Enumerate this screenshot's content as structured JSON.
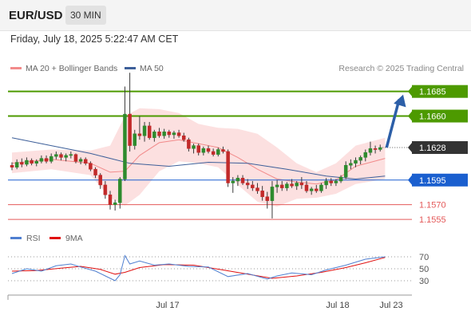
{
  "header": {
    "symbol": "EUR/USD",
    "timeframe": "30 MIN"
  },
  "datetime": "Friday, July 18, 2025 5:22:47 AM CET",
  "legend": {
    "ma20": {
      "label": "MA 20 + Bollinger Bands",
      "color": "#f28b8b"
    },
    "ma50": {
      "label": "MA 50",
      "color": "#3d5f99"
    }
  },
  "credit": "Research © 2025 Trading Central",
  "rsi_legend": {
    "rsi": {
      "label": "RSI",
      "color": "#4f7fd0"
    },
    "ma9": {
      "label": "9MA",
      "color": "#e01010"
    }
  },
  "colors": {
    "resistance": "#4d9a00",
    "pivot": "#1a5fcf",
    "support": "#e45a5a",
    "last": "#333333",
    "arrow": "#2c5fa8"
  },
  "chart_data": [
    {
      "type": "candlestick",
      "ylim": [
        1.1547,
        1.1705
      ],
      "x_ticks": [
        "Jul 17",
        "Jul 18",
        "Jul 23"
      ],
      "levels": [
        {
          "label": "1.1685",
          "value": 1.1685,
          "kind": "resistance"
        },
        {
          "label": "1.1660",
          "value": 1.166,
          "kind": "resistance"
        },
        {
          "label": "1.1628",
          "value": 1.1628,
          "kind": "last"
        },
        {
          "label": "1.1595",
          "value": 1.1595,
          "kind": "pivot"
        },
        {
          "label": "1.1570",
          "value": 1.157,
          "kind": "support"
        },
        {
          "label": "1.1555",
          "value": 1.1555,
          "kind": "support"
        }
      ],
      "forecast_arrow": {
        "from": 1.1628,
        "to": 1.1685
      },
      "ohlc": [
        [
          1.161,
          1.1613,
          1.1605,
          1.1608
        ],
        [
          1.1608,
          1.1616,
          1.1606,
          1.1613
        ],
        [
          1.1613,
          1.1617,
          1.1608,
          1.1611
        ],
        [
          1.1611,
          1.1618,
          1.1609,
          1.1615
        ],
        [
          1.1615,
          1.1617,
          1.161,
          1.1612
        ],
        [
          1.1612,
          1.1616,
          1.1609,
          1.1614
        ],
        [
          1.1614,
          1.162,
          1.1612,
          1.1617
        ],
        [
          1.1617,
          1.162,
          1.1612,
          1.1614
        ],
        [
          1.1614,
          1.1622,
          1.1612,
          1.1619
        ],
        [
          1.1619,
          1.1624,
          1.1616,
          1.1621
        ],
        [
          1.1621,
          1.1623,
          1.1615,
          1.1618
        ],
        [
          1.1618,
          1.1622,
          1.1614,
          1.162
        ],
        [
          1.162,
          1.1624,
          1.1617,
          1.1621
        ],
        [
          1.1621,
          1.1622,
          1.1612,
          1.1614
        ],
        [
          1.1614,
          1.1618,
          1.1611,
          1.1616
        ],
        [
          1.1616,
          1.1618,
          1.161,
          1.1612
        ],
        [
          1.1612,
          1.1614,
          1.1604,
          1.1606
        ],
        [
          1.1606,
          1.1608,
          1.1597,
          1.16
        ],
        [
          1.16,
          1.1602,
          1.1586,
          1.159
        ],
        [
          1.159,
          1.1594,
          1.1576,
          1.158
        ],
        [
          1.158,
          1.1584,
          1.1565,
          1.157
        ],
        [
          1.157,
          1.1575,
          1.1564,
          1.1572
        ],
        [
          1.1572,
          1.1598,
          1.1566,
          1.1596
        ],
        [
          1.1596,
          1.169,
          1.1594,
          1.1662
        ],
        [
          1.1662,
          1.1704,
          1.1624,
          1.163
        ],
        [
          1.163,
          1.1646,
          1.1626,
          1.1642
        ],
        [
          1.1642,
          1.166,
          1.1636,
          1.164
        ],
        [
          1.164,
          1.1654,
          1.1634,
          1.165
        ],
        [
          1.165,
          1.1654,
          1.1636,
          1.1638
        ],
        [
          1.1638,
          1.1646,
          1.1634,
          1.1644
        ],
        [
          1.1644,
          1.1648,
          1.1638,
          1.164
        ],
        [
          1.164,
          1.1647,
          1.1637,
          1.1644
        ],
        [
          1.1644,
          1.1646,
          1.1638,
          1.1641
        ],
        [
          1.1641,
          1.1645,
          1.1637,
          1.1643
        ],
        [
          1.1643,
          1.1646,
          1.1638,
          1.164
        ],
        [
          1.164,
          1.1643,
          1.1634,
          1.1636
        ],
        [
          1.1636,
          1.1638,
          1.1624,
          1.1627
        ],
        [
          1.1627,
          1.1632,
          1.1622,
          1.163
        ],
        [
          1.163,
          1.1632,
          1.162,
          1.1623
        ],
        [
          1.1623,
          1.1629,
          1.162,
          1.1627
        ],
        [
          1.1627,
          1.163,
          1.1622,
          1.1624
        ],
        [
          1.1624,
          1.1627,
          1.1619,
          1.1621
        ],
        [
          1.1621,
          1.1628,
          1.1619,
          1.1626
        ],
        [
          1.1626,
          1.1629,
          1.1622,
          1.1624
        ],
        [
          1.1624,
          1.1626,
          1.1588,
          1.1592
        ],
        [
          1.1592,
          1.1598,
          1.1582,
          1.1594
        ],
        [
          1.1594,
          1.16,
          1.1589,
          1.1597
        ],
        [
          1.1597,
          1.16,
          1.159,
          1.1592
        ],
        [
          1.1592,
          1.1596,
          1.1586,
          1.159
        ],
        [
          1.159,
          1.1594,
          1.1584,
          1.1587
        ],
        [
          1.1587,
          1.1592,
          1.1581,
          1.1584
        ],
        [
          1.1584,
          1.1589,
          1.1574,
          1.1578
        ],
        [
          1.1578,
          1.1583,
          1.1566,
          1.1574
        ],
        [
          1.1574,
          1.1594,
          1.1556,
          1.1588
        ],
        [
          1.1588,
          1.1595,
          1.1582,
          1.159
        ],
        [
          1.159,
          1.1594,
          1.1584,
          1.1587
        ],
        [
          1.1587,
          1.1593,
          1.1584,
          1.1591
        ],
        [
          1.1591,
          1.1596,
          1.1587,
          1.1589
        ],
        [
          1.1589,
          1.1594,
          1.1585,
          1.1592
        ],
        [
          1.1592,
          1.1598,
          1.1586,
          1.159
        ],
        [
          1.159,
          1.1594,
          1.1582,
          1.1584
        ],
        [
          1.1584,
          1.1588,
          1.158,
          1.1586
        ],
        [
          1.1586,
          1.159,
          1.1582,
          1.1584
        ],
        [
          1.1584,
          1.1592,
          1.1582,
          1.159
        ],
        [
          1.159,
          1.1597,
          1.1586,
          1.1594
        ],
        [
          1.1594,
          1.1597,
          1.1589,
          1.1592
        ],
        [
          1.1592,
          1.1596,
          1.1589,
          1.1594
        ],
        [
          1.1594,
          1.16,
          1.1592,
          1.1598
        ],
        [
          1.1598,
          1.1614,
          1.1596,
          1.161
        ],
        [
          1.161,
          1.1616,
          1.1606,
          1.1612
        ],
        [
          1.1612,
          1.1618,
          1.1608,
          1.1615
        ],
        [
          1.1615,
          1.162,
          1.1611,
          1.1618
        ],
        [
          1.1618,
          1.1626,
          1.1614,
          1.1623
        ],
        [
          1.1623,
          1.1634,
          1.162,
          1.1627
        ],
        [
          1.1627,
          1.163,
          1.1622,
          1.1626
        ],
        [
          1.1626,
          1.1631,
          1.1624,
          1.1628
        ]
      ],
      "ma50": [
        [
          0,
          1.1638
        ],
        [
          8,
          1.163
        ],
        [
          16,
          1.1622
        ],
        [
          24,
          1.1612
        ],
        [
          32,
          1.1609
        ],
        [
          40,
          1.1613
        ],
        [
          48,
          1.1612
        ],
        [
          56,
          1.1606
        ],
        [
          64,
          1.1599
        ],
        [
          70,
          1.1596
        ],
        [
          76,
          1.1599
        ]
      ],
      "bollinger": {
        "upper": [
          [
            0,
            1.1623
          ],
          [
            8,
            1.1626
          ],
          [
            16,
            1.1625
          ],
          [
            20,
            1.163
          ],
          [
            23,
            1.166
          ],
          [
            26,
            1.1668
          ],
          [
            30,
            1.1667
          ],
          [
            34,
            1.1663
          ],
          [
            38,
            1.1652
          ],
          [
            42,
            1.1648
          ],
          [
            46,
            1.1647
          ],
          [
            50,
            1.1642
          ],
          [
            54,
            1.1628
          ],
          [
            58,
            1.1612
          ],
          [
            62,
            1.1603
          ],
          [
            66,
            1.1612
          ],
          [
            70,
            1.163
          ],
          [
            76,
            1.1638
          ]
        ],
        "lower": [
          [
            0,
            1.1602
          ],
          [
            8,
            1.1606
          ],
          [
            16,
            1.16
          ],
          [
            20,
            1.1577
          ],
          [
            23,
            1.1569
          ],
          [
            26,
            1.158
          ],
          [
            30,
            1.1604
          ],
          [
            34,
            1.1614
          ],
          [
            38,
            1.1612
          ],
          [
            42,
            1.1608
          ],
          [
            46,
            1.159
          ],
          [
            50,
            1.1573
          ],
          [
            54,
            1.1568
          ],
          [
            58,
            1.1576
          ],
          [
            62,
            1.1577
          ],
          [
            66,
            1.1581
          ],
          [
            70,
            1.1591
          ],
          [
            76,
            1.1596
          ]
        ],
        "mid": [
          [
            0,
            1.1612
          ],
          [
            8,
            1.1616
          ],
          [
            16,
            1.1612
          ],
          [
            20,
            1.1603
          ],
          [
            23,
            1.1604
          ],
          [
            26,
            1.162
          ],
          [
            30,
            1.1633
          ],
          [
            34,
            1.1636
          ],
          [
            38,
            1.1632
          ],
          [
            42,
            1.1628
          ],
          [
            46,
            1.1618
          ],
          [
            50,
            1.1606
          ],
          [
            54,
            1.1596
          ],
          [
            58,
            1.1593
          ],
          [
            62,
            1.1591
          ],
          [
            66,
            1.1595
          ],
          [
            70,
            1.1609
          ],
          [
            76,
            1.1617
          ]
        ]
      }
    },
    {
      "type": "line",
      "title": "RSI",
      "ylim": [
        10,
        90
      ],
      "y_ticks": [
        70,
        50,
        30
      ],
      "series": [
        {
          "name": "RSI",
          "values": [
            [
              0,
              42
            ],
            [
              3,
              50
            ],
            [
              6,
              46
            ],
            [
              9,
              55
            ],
            [
              12,
              58
            ],
            [
              14,
              53
            ],
            [
              17,
              46
            ],
            [
              19,
              38
            ],
            [
              21,
              30
            ],
            [
              22,
              40
            ],
            [
              23,
              72
            ],
            [
              24,
              58
            ],
            [
              26,
              63
            ],
            [
              29,
              56
            ],
            [
              32,
              58
            ],
            [
              36,
              54
            ],
            [
              40,
              53
            ],
            [
              44,
              37
            ],
            [
              48,
              42
            ],
            [
              52,
              33
            ],
            [
              54,
              38
            ],
            [
              57,
              43
            ],
            [
              61,
              40
            ],
            [
              64,
              48
            ],
            [
              68,
              56
            ],
            [
              72,
              66
            ],
            [
              76,
              70
            ]
          ]
        },
        {
          "name": "9MA",
          "values": [
            [
              0,
              46
            ],
            [
              5,
              47
            ],
            [
              10,
              51
            ],
            [
              14,
              54
            ],
            [
              18,
              49
            ],
            [
              21,
              41
            ],
            [
              23,
              44
            ],
            [
              26,
              52
            ],
            [
              31,
              57
            ],
            [
              37,
              56
            ],
            [
              43,
              48
            ],
            [
              48,
              41
            ],
            [
              53,
              34
            ],
            [
              58,
              38
            ],
            [
              63,
              44
            ],
            [
              68,
              52
            ],
            [
              72,
              60
            ],
            [
              76,
              69
            ]
          ]
        }
      ]
    }
  ]
}
